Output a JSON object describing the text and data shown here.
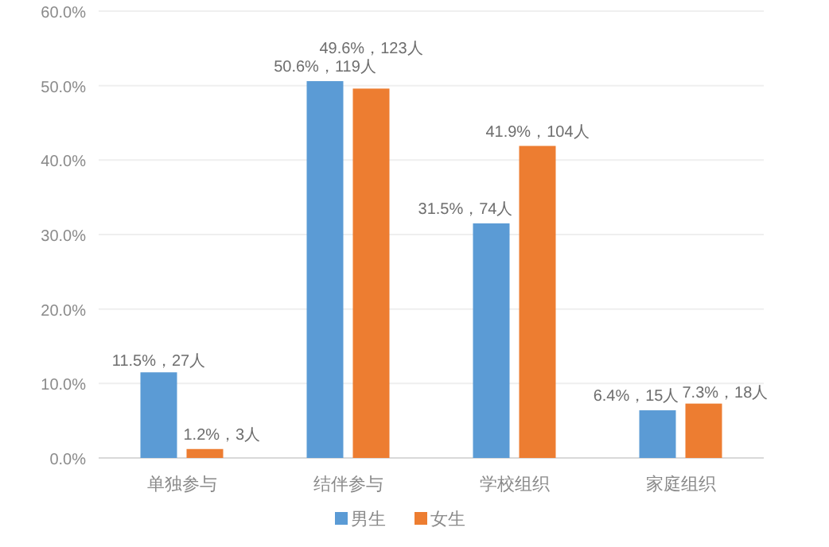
{
  "chart_data": {
    "type": "bar",
    "categories": [
      "单独参与",
      "结伴参与",
      "学校组织",
      "家庭组织"
    ],
    "series": [
      {
        "name": "男生",
        "color": "#5b9bd5",
        "values": [
          11.5,
          50.6,
          31.5,
          6.4
        ],
        "value_labels": [
          "11.5%，27人",
          "50.6%，119人",
          "31.5%，74人",
          "6.4%，15人"
        ]
      },
      {
        "name": "女生",
        "color": "#ed7d31",
        "values": [
          1.2,
          49.6,
          41.9,
          7.3
        ],
        "value_labels": [
          "1.2%，3人",
          "49.6%，123人",
          "41.9%，104人",
          "7.3%，18人"
        ]
      }
    ],
    "ylim": [
      0,
      60
    ],
    "yticks": [
      {
        "value": 0,
        "label": "0.0%"
      },
      {
        "value": 10,
        "label": "10.0%"
      },
      {
        "value": 20,
        "label": "20.0%"
      },
      {
        "value": 30,
        "label": "30.0%"
      },
      {
        "value": 40,
        "label": "40.0%"
      },
      {
        "value": 50,
        "label": "50.0%"
      },
      {
        "value": 60,
        "label": "60.0%"
      }
    ],
    "grid": "y",
    "legend": "bottom"
  }
}
